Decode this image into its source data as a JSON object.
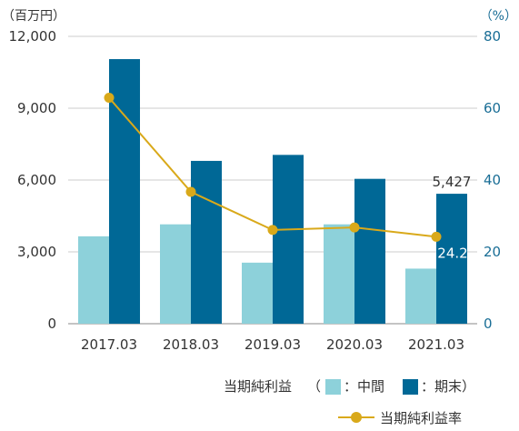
{
  "chart_data": {
    "type": "bar",
    "categories": [
      "2017.03",
      "2018.03",
      "2019.03",
      "2020.03",
      "2021.03"
    ],
    "series": [
      {
        "name": "中間",
        "values": [
          3650,
          4150,
          2550,
          4150,
          2300
        ],
        "color": "#8dd1da"
      },
      {
        "name": "期末",
        "values": [
          11050,
          6800,
          7050,
          6050,
          5427
        ],
        "color": "#006896"
      }
    ],
    "line_series": {
      "name": "当期純利益率",
      "values": [
        62.9,
        36.7,
        26.1,
        26.8,
        24.2
      ],
      "color": "#d9a91a"
    },
    "ylim_left": [
      0,
      12000
    ],
    "yticks_left": [
      "0",
      "3,000",
      "6,000",
      "9,000",
      "12,000"
    ],
    "ylim_right": [
      0,
      80
    ],
    "yticks_right": [
      "0",
      "20",
      "40",
      "60",
      "80"
    ],
    "unit_left": "（百万円）",
    "unit_right": "（%）",
    "data_labels": {
      "bar_last": "5,427",
      "line_last": "24.2"
    },
    "legend": {
      "group_label": "当期純利益",
      "open_paren": "（",
      "item1": "：中間",
      "item2": "：期末）",
      "line_label": "当期純利益率"
    },
    "grid": true
  }
}
